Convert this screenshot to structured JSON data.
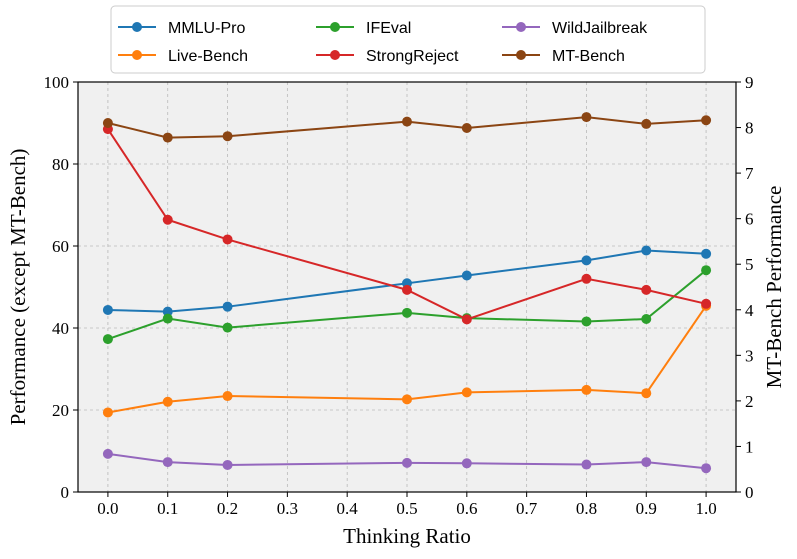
{
  "chart_data": {
    "type": "line",
    "title": "",
    "xlabel": "Thinking Ratio",
    "ylabel": "Performance (except MT-Bench)",
    "y2label": "MT-Bench Performance",
    "x": [
      0.0,
      0.1,
      0.2,
      0.5,
      0.6,
      0.8,
      0.9,
      1.0
    ],
    "xticks": [
      "0.0",
      "0.1",
      "0.2",
      "0.3",
      "0.4",
      "0.5",
      "0.6",
      "0.7",
      "0.8",
      "0.9",
      "1.0"
    ],
    "xlim": [
      -0.05,
      1.05
    ],
    "ylim": [
      0,
      100
    ],
    "yticks": [
      "0",
      "20",
      "40",
      "60",
      "80",
      "100"
    ],
    "y2lim": [
      0,
      9
    ],
    "y2ticks": [
      "0",
      "1",
      "2",
      "3",
      "4",
      "5",
      "6",
      "7",
      "8",
      "9"
    ],
    "grid": true,
    "legend_position": "top, outside plot, 3 columns",
    "series": [
      {
        "name": "MMLU-Pro",
        "axis": "left",
        "color": "#1f77b4",
        "values": [
          44.4,
          44.0,
          45.2,
          50.9,
          52.8,
          56.5,
          58.9,
          58.1
        ]
      },
      {
        "name": "Live-Bench",
        "axis": "left",
        "color": "#ff7f0e",
        "values": [
          19.4,
          22.0,
          23.4,
          22.6,
          24.3,
          24.9,
          24.1,
          45.4
        ]
      },
      {
        "name": "IFEval",
        "axis": "left",
        "color": "#2ca02c",
        "values": [
          37.3,
          42.3,
          40.1,
          43.7,
          42.4,
          41.6,
          42.2,
          54.1
        ]
      },
      {
        "name": "StrongReject",
        "axis": "left",
        "color": "#d62728",
        "values": [
          88.5,
          66.4,
          61.6,
          49.3,
          42.1,
          52.0,
          49.3,
          45.9
        ]
      },
      {
        "name": "WildJailbreak",
        "axis": "left",
        "color": "#9467bd",
        "values": [
          9.3,
          7.3,
          6.6,
          7.1,
          7.0,
          6.7,
          7.3,
          5.8
        ]
      },
      {
        "name": "MT-Bench",
        "axis": "right",
        "color": "#8b4513",
        "values": [
          8.1,
          7.78,
          7.81,
          8.13,
          7.99,
          8.23,
          8.08,
          8.16
        ]
      }
    ]
  }
}
